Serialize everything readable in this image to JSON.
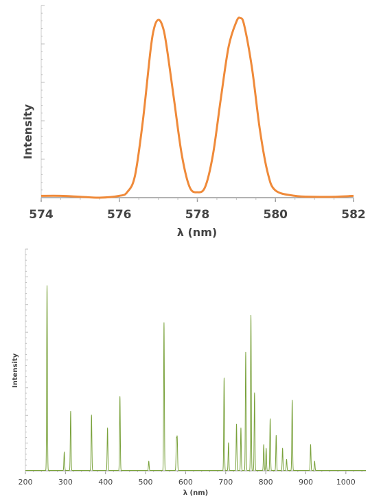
{
  "chart_data": [
    {
      "type": "line",
      "title": "",
      "xlabel": "λ (nm)",
      "ylabel": "Intensity",
      "xlim": [
        574,
        582
      ],
      "ylim": [
        0,
        1.07
      ],
      "xticks": [
        "574",
        "576",
        "578",
        "580",
        "582"
      ],
      "grid": false,
      "color": "#ef8a3a",
      "series": [
        {
          "x": [
            574,
            574.5,
            575,
            575.5,
            576,
            576.2,
            576.4,
            576.6,
            576.8,
            576.9,
            577.0,
            577.1,
            577.2,
            577.4,
            577.6,
            577.8,
            578.0,
            578.2,
            578.4,
            578.6,
            578.8,
            579.0,
            579.1,
            579.2,
            579.4,
            579.6,
            579.8,
            580.0,
            580.5,
            581,
            581.5,
            582
          ],
          "y": [
            0.01,
            0.01,
            0.005,
            0.0,
            0.01,
            0.03,
            0.12,
            0.42,
            0.82,
            0.95,
            0.99,
            0.96,
            0.86,
            0.55,
            0.24,
            0.06,
            0.03,
            0.06,
            0.24,
            0.55,
            0.84,
            0.98,
            1.0,
            0.96,
            0.72,
            0.38,
            0.14,
            0.04,
            0.01,
            0.005,
            0.005,
            0.01
          ]
        }
      ]
    },
    {
      "type": "line",
      "title": "",
      "xlabel": "λ (nm)",
      "ylabel": "Intensity",
      "xlim": [
        200,
        1050
      ],
      "ylim": [
        0,
        1.2
      ],
      "xticks": [
        "200",
        "300",
        "400",
        "500",
        "600",
        "700",
        "800",
        "900",
        "1000"
      ],
      "grid": false,
      "color": "#7aa23c",
      "peaks": {
        "x": [
          254,
          297,
          313,
          365,
          405,
          436,
          508,
          546,
          577,
          579,
          696,
          707,
          727,
          738,
          750,
          763,
          772,
          795,
          801,
          811,
          826,
          842,
          852,
          866,
          912,
          922
        ],
        "y": [
          1.0,
          0.1,
          0.32,
          0.3,
          0.23,
          0.4,
          0.05,
          0.8,
          0.16,
          0.17,
          0.5,
          0.15,
          0.25,
          0.23,
          0.64,
          0.84,
          0.42,
          0.14,
          0.12,
          0.28,
          0.19,
          0.12,
          0.06,
          0.38,
          0.14,
          0.05
        ]
      }
    }
  ]
}
